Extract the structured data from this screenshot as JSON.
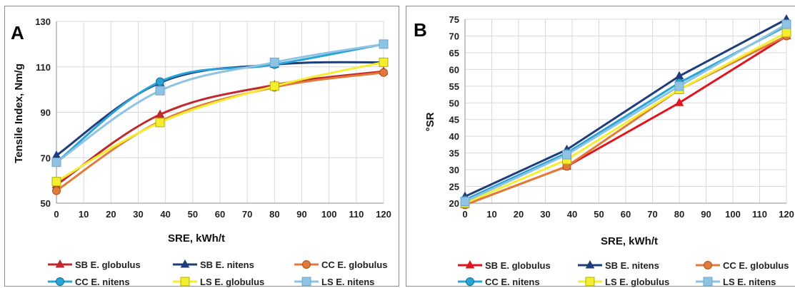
{
  "chart_data": [
    {
      "type": "line",
      "panel_label": "A",
      "xlabel": "SRE, kWh/t",
      "ylabel": "Tensile Index, Nm/g",
      "xlim": [
        0,
        120
      ],
      "ylim": [
        50,
        130
      ],
      "x_ticks": [
        0,
        10,
        20,
        30,
        40,
        50,
        60,
        70,
        80,
        90,
        100,
        110,
        120
      ],
      "y_ticks": [
        50,
        70,
        90,
        110,
        130
      ],
      "grid": true,
      "legend_position": "bottom",
      "series": [
        {
          "name": "SB E. globulus",
          "color": "#c0282d",
          "marker": "triangle",
          "x": [
            0,
            38,
            80,
            120
          ],
          "y": [
            58,
            89,
            102,
            108
          ]
        },
        {
          "name": "SB E. nitens",
          "color": "#1f3d7a",
          "marker": "triangle",
          "x": [
            0,
            38,
            80,
            120
          ],
          "y": [
            71,
            103,
            111,
            112
          ]
        },
        {
          "name": "CC E. globulus",
          "color": "#e07b39",
          "marker": "circle",
          "x": [
            0,
            38,
            80,
            120
          ],
          "y": [
            55.5,
            86,
            101,
            107.5
          ]
        },
        {
          "name": "CC E. nitens",
          "color": "#2aa3d6",
          "marker": "circle",
          "x": [
            0,
            38,
            80,
            120
          ],
          "y": [
            68,
            103.5,
            111,
            120
          ]
        },
        {
          "name": "LS E. globulus",
          "color": "#f5ee30",
          "marker": "square",
          "x": [
            0,
            38,
            80,
            120
          ],
          "y": [
            59.5,
            85.5,
            101.5,
            112
          ]
        },
        {
          "name": "LS E. nitens",
          "color": "#8fc3e3",
          "marker": "square",
          "x": [
            0,
            38,
            80,
            120
          ],
          "y": [
            68,
            99.5,
            112,
            120
          ]
        }
      ]
    },
    {
      "type": "line",
      "panel_label": "B",
      "xlabel": "SRE, kWh/t",
      "ylabel": "°SR",
      "xlim": [
        0,
        120
      ],
      "ylim": [
        20,
        75
      ],
      "x_ticks": [
        0,
        10,
        20,
        30,
        40,
        50,
        60,
        70,
        80,
        90,
        100,
        110,
        120
      ],
      "y_ticks": [
        20,
        25,
        30,
        35,
        40,
        45,
        50,
        55,
        60,
        65,
        70,
        75
      ],
      "grid": true,
      "legend_position": "bottom",
      "series": [
        {
          "name": "SB E. globulus",
          "color": "#e0141e",
          "marker": "triangle",
          "x": [
            0,
            38,
            80,
            120
          ],
          "y": [
            19.5,
            31,
            50,
            70
          ]
        },
        {
          "name": "SB E. nitens",
          "color": "#1f3d7a",
          "marker": "triangle",
          "x": [
            0,
            38,
            80,
            120
          ],
          "y": [
            22,
            36,
            58,
            75
          ]
        },
        {
          "name": "CC E. globulus",
          "color": "#e07b39",
          "marker": "circle",
          "x": [
            0,
            38,
            80,
            120
          ],
          "y": [
            19.5,
            31,
            54,
            70
          ]
        },
        {
          "name": "CC E. nitens",
          "color": "#2aa3d6",
          "marker": "circle",
          "x": [
            0,
            38,
            80,
            120
          ],
          "y": [
            21,
            35,
            56,
            73
          ]
        },
        {
          "name": "LS E. globulus",
          "color": "#f5ee30",
          "marker": "square",
          "x": [
            0,
            38,
            80,
            120
          ],
          "y": [
            20,
            33,
            54,
            71
          ]
        },
        {
          "name": "LS E. nitens",
          "color": "#8fc3e3",
          "marker": "square",
          "x": [
            0,
            38,
            80,
            120
          ],
          "y": [
            20.5,
            34.5,
            55,
            73.5
          ]
        }
      ]
    }
  ]
}
